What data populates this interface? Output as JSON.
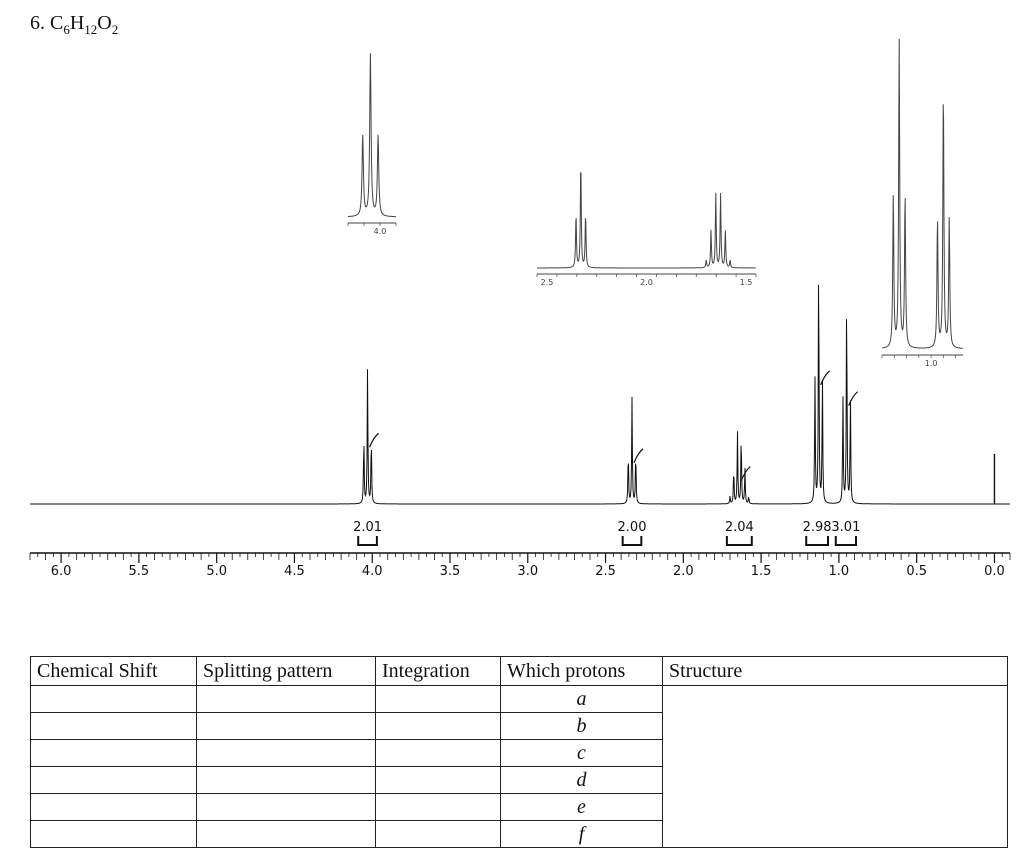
{
  "problem": {
    "number": "6.",
    "formula_parts": [
      {
        "t": "C",
        "s": false
      },
      {
        "t": "6",
        "s": true
      },
      {
        "t": "H",
        "s": false
      },
      {
        "t": "12",
        "s": true
      },
      {
        "t": "O",
        "s": false
      },
      {
        "t": "2",
        "s": true
      }
    ]
  },
  "chart_data": {
    "type": "line",
    "xlim": [
      6.2,
      -0.1
    ],
    "x_major_ticks": [
      6.0,
      5.5,
      5.0,
      4.5,
      4.0,
      3.5,
      3.0,
      2.5,
      2.0,
      1.5,
      1.0,
      0.5,
      0.0
    ],
    "x_tick_labels": [
      "6.0",
      "5.5",
      "5.0",
      "4.5",
      "4.0",
      "3.5",
      "3.0",
      "2.5",
      "2.0",
      "1.5",
      "1.0",
      "0.5",
      "0.0"
    ],
    "peaks": [
      {
        "shift": 4.03,
        "multiplicity": 3,
        "height": 0.68,
        "width": 0.022
      },
      {
        "shift": 2.33,
        "multiplicity": 3,
        "height": 0.53,
        "width": 0.022
      },
      {
        "shift": 1.64,
        "multiplicity": 6,
        "height": 0.36,
        "width": 0.022
      },
      {
        "shift": 1.13,
        "multiplicity": 3,
        "height": 1.28,
        "width": 0.022
      },
      {
        "shift": 0.95,
        "multiplicity": 3,
        "height": 1.08,
        "width": 0.022
      },
      {
        "shift": 0.0,
        "multiplicity": 1,
        "height": 0.25,
        "width": 0
      }
    ],
    "integrations": [
      {
        "label": "2.01",
        "from": 4.09,
        "to": 3.97
      },
      {
        "label": "2.00",
        "from": 2.39,
        "to": 2.27
      },
      {
        "label": "2.04",
        "from": 1.72,
        "to": 1.56
      },
      {
        "label": "2.98",
        "from": 1.21,
        "to": 1.07
      },
      {
        "label": "3.01",
        "from": 1.02,
        "to": 0.89
      }
    ],
    "insets": [
      {
        "tick_labels": [
          "4.0"
        ],
        "tick_values": [
          4.0
        ],
        "xlim": [
          4.1,
          3.95
        ]
      },
      {
        "tick_labels": [
          "2.5",
          "2.0",
          "1.5"
        ],
        "tick_values": [
          2.5,
          2.0,
          1.5
        ],
        "xlim": [
          2.55,
          1.45
        ]
      },
      {
        "tick_labels": [
          "1.0"
        ],
        "tick_values": [
          1.0
        ],
        "xlim": [
          1.2,
          0.87
        ]
      }
    ]
  },
  "table": {
    "headers": [
      "Chemical Shift",
      "Splitting pattern",
      "Integration",
      "Which protons",
      "Structure"
    ],
    "row_labels": [
      "a",
      "b",
      "c",
      "d",
      "e",
      "f"
    ]
  }
}
